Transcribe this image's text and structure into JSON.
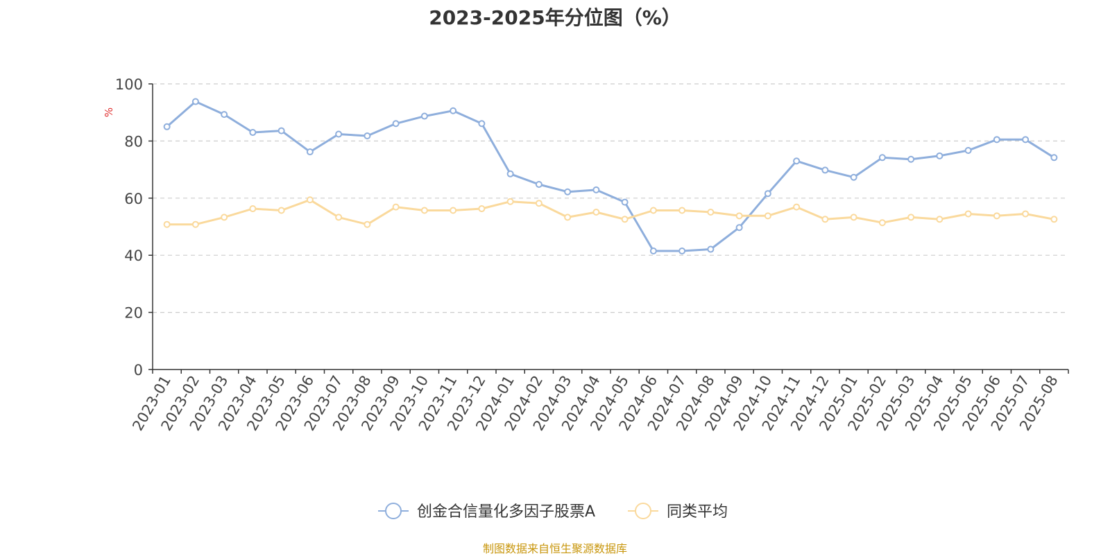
{
  "chart_data": {
    "type": "line",
    "title": "2023-2025年分位图（%）",
    "ylabel": "%",
    "xlabel": "",
    "ylim": [
      0,
      100
    ],
    "yticks": [
      0,
      20,
      40,
      60,
      80,
      100
    ],
    "grid": "horizontal-dashed",
    "legend_position": "bottom",
    "categories": [
      "2023-01",
      "2023-02",
      "2023-03",
      "2023-04",
      "2023-05",
      "2023-06",
      "2023-07",
      "2023-08",
      "2023-09",
      "2023-10",
      "2023-11",
      "2023-12",
      "2024-01",
      "2024-02",
      "2024-03",
      "2024-04",
      "2024-05",
      "2024-06",
      "2024-07",
      "2024-08",
      "2024-09",
      "2024-10",
      "2024-11",
      "2024-12",
      "2025-01",
      "2025-02",
      "2025-03",
      "2025-04",
      "2025-05",
      "2025-06",
      "2025-07",
      "2025-08"
    ],
    "series": [
      {
        "name": "创金合信量化多因子股票A",
        "color": "#8eaedc",
        "values": [
          85.0,
          93.8,
          89.3,
          83.0,
          83.6,
          76.2,
          82.4,
          81.8,
          86.1,
          88.7,
          90.6,
          86.1,
          68.5,
          64.8,
          62.2,
          62.9,
          58.6,
          41.5,
          41.5,
          42.1,
          49.7,
          61.6,
          73.0,
          69.8,
          67.3,
          74.2,
          73.6,
          74.8,
          76.7,
          80.5,
          80.5,
          74.2
        ]
      },
      {
        "name": "同类平均",
        "color": "#fad99c",
        "values": [
          50.8,
          50.8,
          53.3,
          56.3,
          55.7,
          59.4,
          53.3,
          50.8,
          56.9,
          55.7,
          55.7,
          56.3,
          58.8,
          58.2,
          53.3,
          55.1,
          52.6,
          55.7,
          55.7,
          55.1,
          53.8,
          53.8,
          56.9,
          52.6,
          53.3,
          51.4,
          53.3,
          52.6,
          54.5,
          53.8,
          54.5,
          52.6
        ]
      }
    ]
  },
  "footer": "制图数据来自恒生聚源数据库"
}
